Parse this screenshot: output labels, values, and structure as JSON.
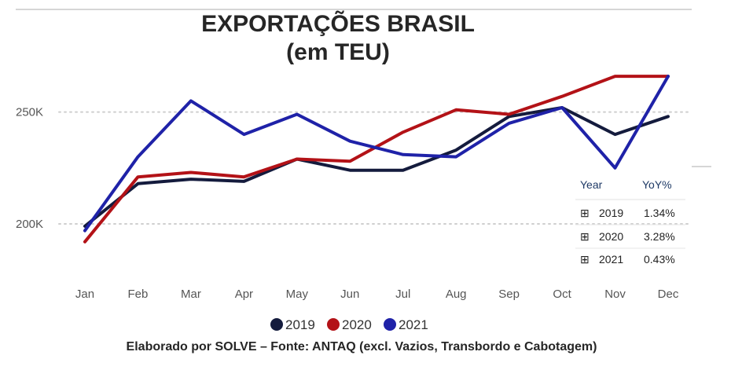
{
  "chart_data": {
    "type": "line",
    "title_line1": "EXPORTAÇÕES BRASIL",
    "title_line2": "(em TEU)",
    "categories": [
      "Jan",
      "Feb",
      "Mar",
      "Apr",
      "May",
      "Jun",
      "Jul",
      "Aug",
      "Sep",
      "Oct",
      "Nov",
      "Dec"
    ],
    "y_tick_labels": [
      "200K",
      "250K"
    ],
    "y_ticks": [
      200000,
      250000
    ],
    "ylim": [
      180000,
      272000
    ],
    "grid": "horizontal dotted",
    "legend_position": "bottom",
    "series": [
      {
        "name": "2019",
        "color": "#141b3d",
        "values": [
          199000,
          218000,
          220000,
          219000,
          229000,
          224000,
          224000,
          233000,
          248000,
          252000,
          240000,
          248000
        ]
      },
      {
        "name": "2020",
        "color": "#b31217",
        "values": [
          192000,
          221000,
          223000,
          221000,
          229000,
          228000,
          241000,
          251000,
          249000,
          257000,
          266000,
          266000
        ]
      },
      {
        "name": "2021",
        "color": "#1f22a8",
        "values": [
          197000,
          230000,
          255000,
          240000,
          249000,
          237000,
          231000,
          230000,
          245000,
          252000,
          225000,
          266000
        ]
      }
    ],
    "yoy_table": {
      "header_year": "Year",
      "header_yoy": "YoY%",
      "expand_symbol": "⊞",
      "rows": [
        {
          "year": "2019",
          "yoy": "1.34%"
        },
        {
          "year": "2020",
          "yoy": "3.28%"
        },
        {
          "year": "2021",
          "yoy": "0.43%"
        }
      ]
    },
    "source_note": "Elaborado por SOLVE – Fonte: ANTAQ (excl. Vazios, Transbordo e Cabotagem)"
  }
}
